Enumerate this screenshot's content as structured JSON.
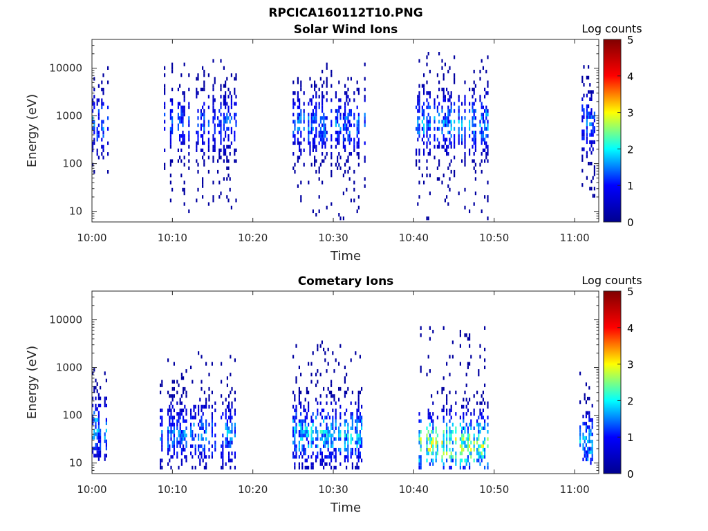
{
  "figure": {
    "title": "RPCICA160112T10.PNG"
  },
  "colormap": {
    "name": "jet",
    "stops": [
      "#00008f",
      "#0000ff",
      "#00ffff",
      "#ffff00",
      "#ff0000",
      "#800000"
    ]
  },
  "chart_data": [
    {
      "type": "heatmap",
      "title": "Solar Wind Ions",
      "xlabel": "Time",
      "ylabel": "Energy (eV)",
      "x_ticks": [
        "10:00",
        "10:10",
        "10:20",
        "10:30",
        "10:40",
        "10:50",
        "11:00"
      ],
      "x_tick_minutes": [
        0,
        10,
        20,
        30,
        40,
        50,
        60
      ],
      "xlim_minutes": [
        0,
        63
      ],
      "y_ticks": [
        "10",
        "100",
        "1000",
        "10000"
      ],
      "y_tick_values": [
        10,
        100,
        1000,
        10000
      ],
      "ylim": [
        6,
        40000
      ],
      "yscale": "log",
      "colorbar": {
        "label": "Log counts",
        "ticks": [
          "0",
          "1",
          "2",
          "3",
          "4",
          "5"
        ],
        "range": [
          0,
          5
        ]
      },
      "bursts": [
        {
          "start_min": 0.0,
          "end_min": 2.0,
          "e_low": 40,
          "e_high": 15000,
          "peak_e": 700,
          "peak_count": 1.8
        },
        {
          "start_min": 9.0,
          "end_min": 18.2,
          "e_low": 6,
          "e_high": 18000,
          "peak_e": 700,
          "peak_count": 1.5
        },
        {
          "start_min": 24.8,
          "end_min": 34.0,
          "e_low": 6,
          "e_high": 15000,
          "peak_e": 650,
          "peak_count": 1.7
        },
        {
          "start_min": 40.3,
          "end_min": 49.5,
          "e_low": 6,
          "e_high": 35000,
          "peak_e": 700,
          "peak_count": 1.9
        },
        {
          "start_min": 60.7,
          "end_min": 62.5,
          "e_low": 15,
          "e_high": 12000,
          "peak_e": 700,
          "peak_count": 1.6
        }
      ]
    },
    {
      "type": "heatmap",
      "title": "Cometary Ions",
      "xlabel": "Time",
      "ylabel": "Energy (eV)",
      "x_ticks": [
        "10:00",
        "10:10",
        "10:20",
        "10:30",
        "10:40",
        "10:50",
        "11:00"
      ],
      "x_tick_minutes": [
        0,
        10,
        20,
        30,
        40,
        50,
        60
      ],
      "xlim_minutes": [
        0,
        63
      ],
      "y_ticks": [
        "10",
        "100",
        "1000",
        "10000"
      ],
      "y_tick_values": [
        10,
        100,
        1000,
        10000
      ],
      "ylim": [
        6,
        40000
      ],
      "yscale": "log",
      "colorbar": {
        "label": "Log counts",
        "ticks": [
          "0",
          "1",
          "2",
          "3",
          "4",
          "5"
        ],
        "range": [
          0,
          5
        ]
      },
      "bursts": [
        {
          "start_min": 0.0,
          "end_min": 2.0,
          "e_low": 12,
          "e_high": 1100,
          "peak_e": 50,
          "peak_count": 2.0
        },
        {
          "start_min": 8.5,
          "end_min": 17.8,
          "e_low": 8,
          "e_high": 2600,
          "peak_e": 40,
          "peak_count": 1.8
        },
        {
          "start_min": 25.0,
          "end_min": 33.5,
          "e_low": 8,
          "e_high": 3700,
          "peak_e": 40,
          "peak_count": 2.2
        },
        {
          "start_min": 40.3,
          "end_min": 49.2,
          "e_low": 8,
          "e_high": 7700,
          "peak_e": 25,
          "peak_count": 3.1
        },
        {
          "start_min": 60.6,
          "end_min": 62.5,
          "e_low": 10,
          "e_high": 1200,
          "peak_e": 25,
          "peak_count": 2.2
        }
      ]
    }
  ]
}
